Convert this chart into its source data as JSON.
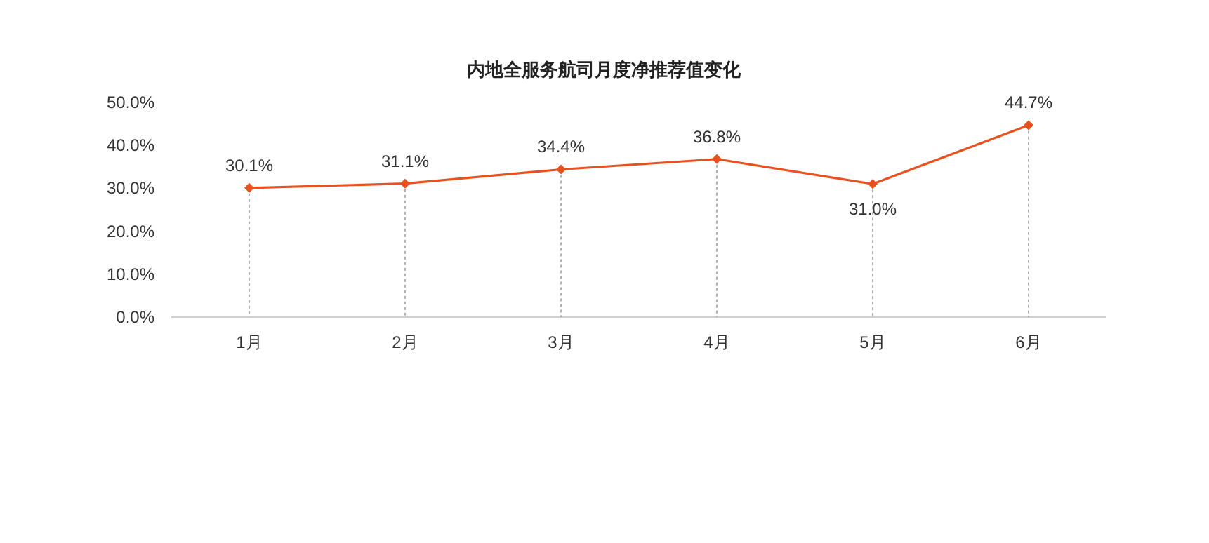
{
  "chart_data": {
    "type": "line",
    "title": "内地全服务航司月度净推荐值变化",
    "categories": [
      "1月",
      "2月",
      "3月",
      "4月",
      "5月",
      "6月"
    ],
    "series": [
      {
        "color": "#e8501e",
        "values": [
          30.1,
          31.1,
          34.4,
          36.8,
          31.0,
          44.7
        ],
        "value_labels": [
          "30.1%",
          "31.1%",
          "34.4%",
          "36.8%",
          "31.0%",
          "44.7%"
        ]
      }
    ],
    "ylim": [
      0,
      50
    ],
    "yticks": [
      {
        "value": 0,
        "label": "0.0%"
      },
      {
        "value": 10,
        "label": "10.0%"
      },
      {
        "value": 20,
        "label": "20.0%"
      },
      {
        "value": 30,
        "label": "30.0%"
      },
      {
        "value": 40,
        "label": "40.0%"
      },
      {
        "value": 50,
        "label": "50.0%"
      }
    ],
    "marker": "diamond",
    "line_style": "solid"
  }
}
